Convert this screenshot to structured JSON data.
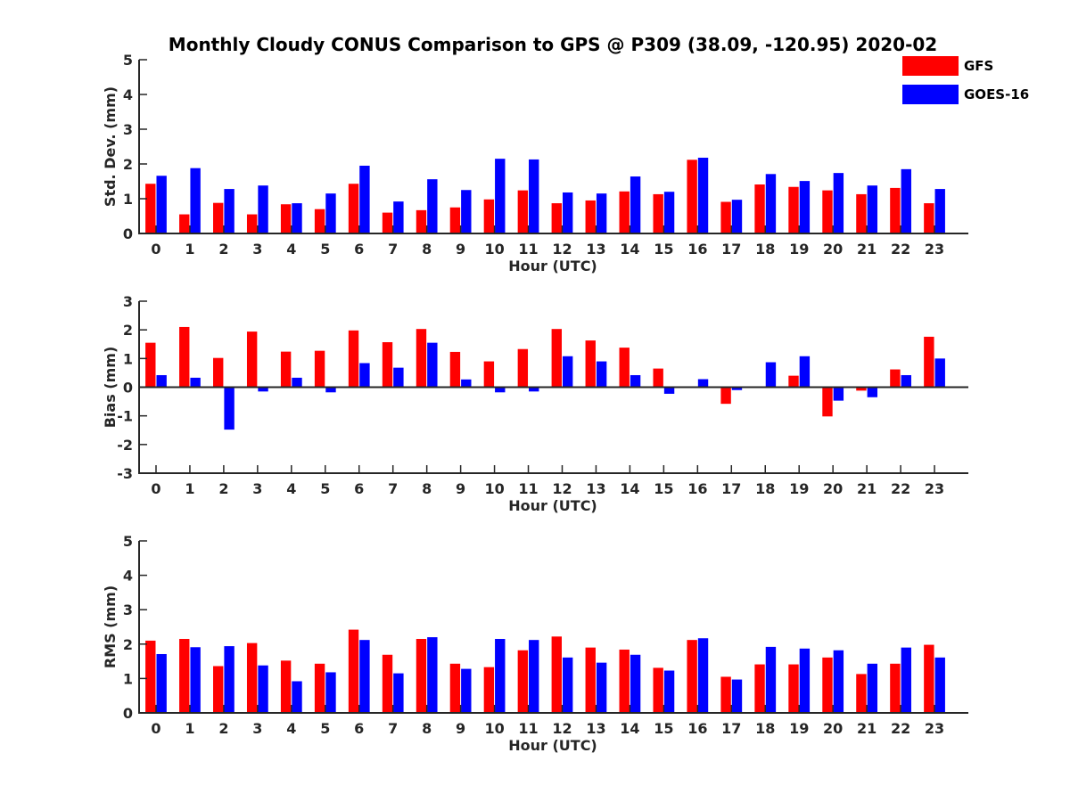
{
  "title": "Monthly Cloudy CONUS Comparison to GPS @ P309 (38.09, -120.95) 2020-02",
  "legend": [
    {
      "name": "GFS",
      "color": "#ff0000"
    },
    {
      "name": "GOES-16",
      "color": "#0000ff"
    }
  ],
  "chart_data": [
    {
      "type": "bar",
      "xlabel": "Hour (UTC)",
      "ylabel": "Std. Dev. (mm)",
      "ylim": [
        0,
        5
      ],
      "yticks": [
        0,
        1,
        2,
        3,
        4,
        5
      ],
      "categories": [
        "0",
        "1",
        "2",
        "3",
        "4",
        "5",
        "6",
        "7",
        "8",
        "9",
        "10",
        "11",
        "12",
        "13",
        "14",
        "15",
        "16",
        "17",
        "18",
        "19",
        "20",
        "21",
        "22",
        "23"
      ],
      "series": [
        {
          "name": "GFS",
          "color": "#ff0000",
          "values": [
            1.43,
            0.55,
            0.88,
            0.55,
            0.84,
            0.7,
            1.43,
            0.6,
            0.67,
            0.75,
            0.98,
            1.24,
            0.87,
            0.95,
            1.21,
            1.13,
            2.12,
            0.91,
            1.41,
            1.34,
            1.24,
            1.13,
            1.31,
            0.87
          ]
        },
        {
          "name": "GOES-16",
          "color": "#0000ff",
          "values": [
            1.66,
            1.88,
            1.28,
            1.38,
            0.87,
            1.15,
            1.95,
            0.92,
            1.56,
            1.25,
            2.15,
            2.13,
            1.18,
            1.15,
            1.64,
            1.2,
            2.18,
            0.97,
            1.71,
            1.51,
            1.74,
            1.38,
            1.85,
            1.28
          ]
        }
      ]
    },
    {
      "type": "bar",
      "xlabel": "Hour (UTC)",
      "ylabel": "Bias (mm)",
      "ylim": [
        -3,
        3
      ],
      "yticks": [
        -3,
        -2,
        -1,
        0,
        1,
        2,
        3
      ],
      "categories": [
        "0",
        "1",
        "2",
        "3",
        "4",
        "5",
        "6",
        "7",
        "8",
        "9",
        "10",
        "11",
        "12",
        "13",
        "14",
        "15",
        "16",
        "17",
        "18",
        "19",
        "20",
        "21",
        "22",
        "23"
      ],
      "series": [
        {
          "name": "GFS",
          "color": "#ff0000",
          "values": [
            1.55,
            2.1,
            1.02,
            1.94,
            1.24,
            1.27,
            1.98,
            1.57,
            2.03,
            1.23,
            0.9,
            1.33,
            2.03,
            1.63,
            1.38,
            0.65,
            0.0,
            -0.58,
            0.03,
            0.4,
            -1.02,
            -0.12,
            0.62,
            1.76
          ]
        },
        {
          "name": "GOES-16",
          "color": "#0000ff",
          "values": [
            0.42,
            0.33,
            -1.48,
            -0.15,
            0.33,
            -0.18,
            0.84,
            0.68,
            1.55,
            0.27,
            -0.18,
            -0.15,
            1.08,
            0.9,
            0.42,
            -0.23,
            0.28,
            -0.1,
            0.87,
            1.08,
            -0.47,
            -0.35,
            0.42,
            1.0
          ]
        }
      ]
    },
    {
      "type": "bar",
      "xlabel": "Hour (UTC)",
      "ylabel": "RMS (mm)",
      "ylim": [
        0,
        5
      ],
      "yticks": [
        0,
        1,
        2,
        3,
        4,
        5
      ],
      "categories": [
        "0",
        "1",
        "2",
        "3",
        "4",
        "5",
        "6",
        "7",
        "8",
        "9",
        "10",
        "11",
        "12",
        "13",
        "14",
        "15",
        "16",
        "17",
        "18",
        "19",
        "20",
        "21",
        "22",
        "23"
      ],
      "series": [
        {
          "name": "GFS",
          "color": "#ff0000",
          "values": [
            2.1,
            2.15,
            1.36,
            2.03,
            1.52,
            1.43,
            2.42,
            1.69,
            2.15,
            1.43,
            1.33,
            1.82,
            2.22,
            1.9,
            1.84,
            1.31,
            2.12,
            1.05,
            1.41,
            1.41,
            1.61,
            1.13,
            1.43,
            1.98
          ]
        },
        {
          "name": "GOES-16",
          "color": "#0000ff",
          "values": [
            1.71,
            1.91,
            1.94,
            1.38,
            0.92,
            1.18,
            2.12,
            1.15,
            2.2,
            1.28,
            2.15,
            2.12,
            1.61,
            1.46,
            1.69,
            1.23,
            2.17,
            0.97,
            1.92,
            1.87,
            1.82,
            1.43,
            1.9,
            1.61
          ]
        }
      ]
    }
  ]
}
